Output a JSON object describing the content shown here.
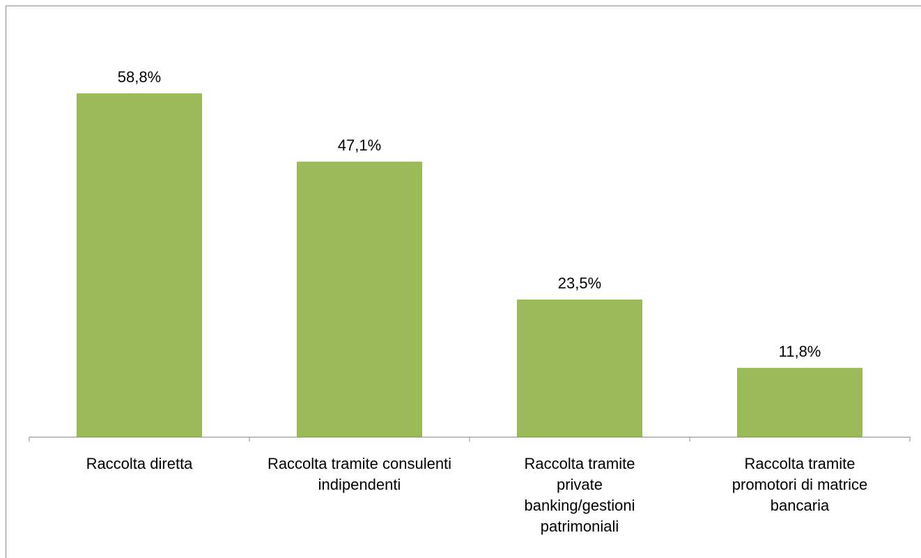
{
  "chart_data": {
    "type": "bar",
    "categories": [
      "Raccolta diretta",
      "Raccolta tramite consulenti indipendenti",
      "Raccolta tramite private banking/gestioni patrimoniali",
      "Raccolta tramite promotori di matrice bancaria"
    ],
    "values": [
      58.8,
      47.1,
      23.5,
      11.8
    ],
    "value_labels": [
      "58,8%",
      "47,1%",
      "23,5%",
      "11,8%"
    ],
    "color": "#9bbb59"
  }
}
